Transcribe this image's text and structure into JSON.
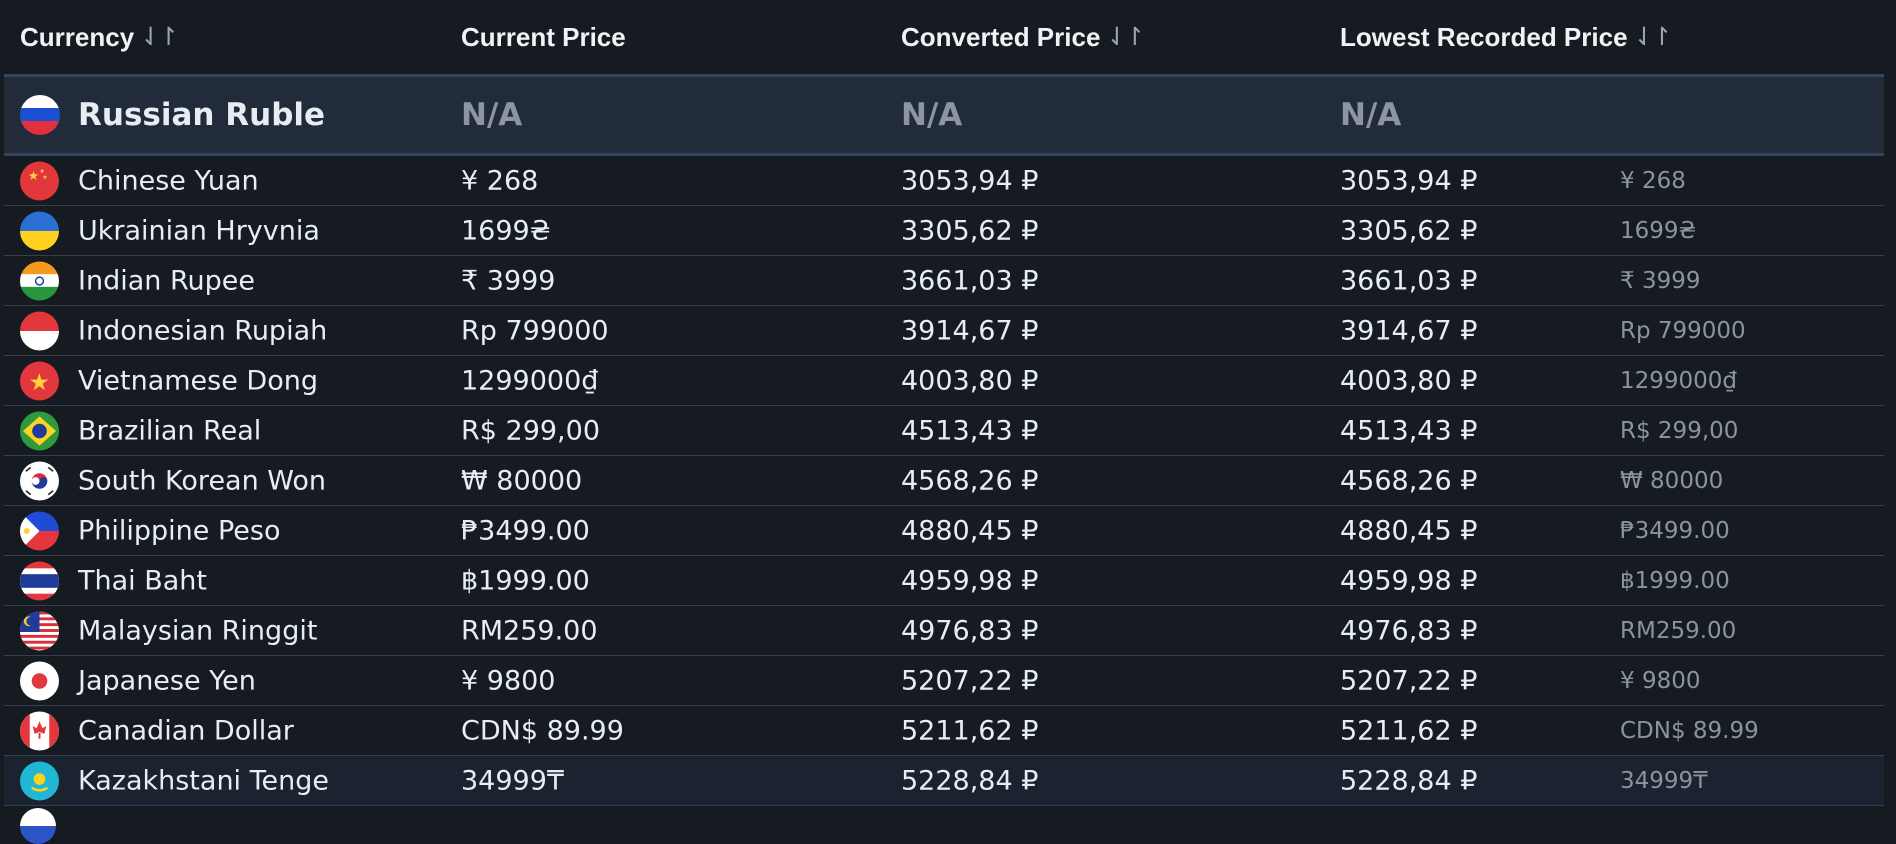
{
  "header": {
    "currency": "Currency",
    "current_price": "Current Price",
    "converted_price": "Converted Price",
    "lowest_recorded_price": "Lowest Recorded Price",
    "sort_icon": "⇃↾"
  },
  "featured": {
    "name": "Russian Ruble",
    "current": "N/A",
    "converted": "N/A",
    "lowest": "N/A",
    "flag": "flag-russia-icon"
  },
  "rows": [
    {
      "name": "Chinese Yuan",
      "current": "¥ 268",
      "converted": "3053,94 ₽",
      "lowest": "3053,94 ₽",
      "lowest_orig": "¥ 268",
      "flag": "flag-china-icon"
    },
    {
      "name": "Ukrainian Hryvnia",
      "current": "1699₴",
      "converted": "3305,62 ₽",
      "lowest": "3305,62 ₽",
      "lowest_orig": "1699₴",
      "flag": "flag-ukraine-icon"
    },
    {
      "name": "Indian Rupee",
      "current": "₹ 3999",
      "converted": "3661,03 ₽",
      "lowest": "3661,03 ₽",
      "lowest_orig": "₹ 3999",
      "flag": "flag-india-icon"
    },
    {
      "name": "Indonesian Rupiah",
      "current": "Rp 799000",
      "converted": "3914,67 ₽",
      "lowest": "3914,67 ₽",
      "lowest_orig": "Rp 799000",
      "flag": "flag-indonesia-icon"
    },
    {
      "name": "Vietnamese Dong",
      "current": "1299000₫",
      "converted": "4003,80 ₽",
      "lowest": "4003,80 ₽",
      "lowest_orig": "1299000₫",
      "flag": "flag-vietnam-icon"
    },
    {
      "name": "Brazilian Real",
      "current": "R$ 299,00",
      "converted": "4513,43 ₽",
      "lowest": "4513,43 ₽",
      "lowest_orig": "R$ 299,00",
      "flag": "flag-brazil-icon"
    },
    {
      "name": "South Korean Won",
      "current": "₩ 80000",
      "converted": "4568,26 ₽",
      "lowest": "4568,26 ₽",
      "lowest_orig": "₩ 80000",
      "flag": "flag-south-korea-icon"
    },
    {
      "name": "Philippine Peso",
      "current": "₱3499.00",
      "converted": "4880,45 ₽",
      "lowest": "4880,45 ₽",
      "lowest_orig": "₱3499.00",
      "flag": "flag-philippines-icon"
    },
    {
      "name": "Thai Baht",
      "current": "฿1999.00",
      "converted": "4959,98 ₽",
      "lowest": "4959,98 ₽",
      "lowest_orig": "฿1999.00",
      "flag": "flag-thailand-icon"
    },
    {
      "name": "Malaysian Ringgit",
      "current": "RM259.00",
      "converted": "4976,83 ₽",
      "lowest": "4976,83 ₽",
      "lowest_orig": "RM259.00",
      "flag": "flag-malaysia-icon"
    },
    {
      "name": "Japanese Yen",
      "current": "¥ 9800",
      "converted": "5207,22 ₽",
      "lowest": "5207,22 ₽",
      "lowest_orig": "¥ 9800",
      "flag": "flag-japan-icon"
    },
    {
      "name": "Canadian Dollar",
      "current": "CDN$ 89.99",
      "converted": "5211,62 ₽",
      "lowest": "5211,62 ₽",
      "lowest_orig": "CDN$ 89.99",
      "flag": "flag-canada-icon"
    },
    {
      "name": "Kazakhstani Tenge",
      "current": "34999₸",
      "converted": "5228,84 ₽",
      "lowest": "5228,84 ₽",
      "lowest_orig": "34999₸",
      "flag": "flag-kazakhstan-icon"
    }
  ]
}
